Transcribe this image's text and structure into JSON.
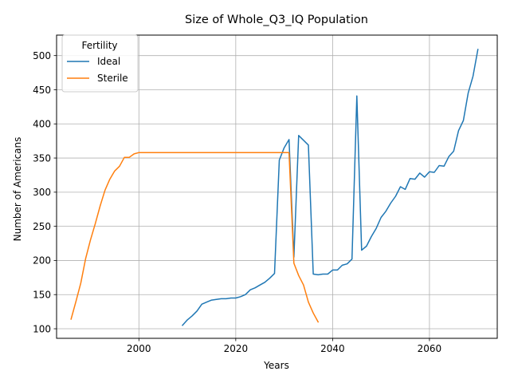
{
  "chart_data": {
    "type": "line",
    "title": "Size of Whole_Q3_IQ Population",
    "xlabel": "Years",
    "ylabel": "Number of Americans",
    "xlim": [
      1983,
      2074
    ],
    "ylim": [
      86,
      530
    ],
    "xticks": [
      2000,
      2020,
      2040,
      2060
    ],
    "yticks": [
      100,
      150,
      200,
      250,
      300,
      350,
      400,
      450,
      500
    ],
    "grid": true,
    "legend": {
      "title": "Fertility",
      "placement": "top-left"
    },
    "series": [
      {
        "name": "Ideal",
        "color": "#1f77b4",
        "x": [
          2009,
          2010,
          2011,
          2012,
          2013,
          2014,
          2015,
          2016,
          2017,
          2018,
          2019,
          2020,
          2021,
          2022,
          2023,
          2024,
          2025,
          2026,
          2027,
          2028,
          2029,
          2030,
          2031,
          2032,
          2033,
          2034,
          2035,
          2036,
          2037,
          2038,
          2039,
          2040,
          2041,
          2042,
          2043,
          2044,
          2045,
          2046,
          2047,
          2048,
          2049,
          2050,
          2051,
          2052,
          2053,
          2054,
          2055,
          2056,
          2057,
          2058,
          2059,
          2060,
          2061,
          2062,
          2063,
          2064,
          2065,
          2066,
          2067,
          2068,
          2069,
          2070
        ],
        "y": [
          105,
          113,
          119,
          126,
          136,
          139,
          142,
          143,
          144,
          144,
          145,
          145,
          147,
          150,
          157,
          160,
          164,
          168,
          174,
          181,
          347,
          365,
          377,
          205,
          383,
          376,
          369,
          180,
          179,
          180,
          180,
          186,
          186,
          193,
          195,
          202,
          441,
          215,
          221,
          235,
          247,
          263,
          272,
          284,
          294,
          308,
          304,
          320,
          319,
          328,
          322,
          330,
          329,
          339,
          338,
          352,
          360,
          390,
          405,
          445,
          470,
          509
        ]
      },
      {
        "name": "Sterile",
        "color": "#ff7f0e",
        "x": [
          1986,
          1987,
          1988,
          1989,
          1990,
          1991,
          1992,
          1993,
          1994,
          1995,
          1996,
          1997,
          1998,
          1999,
          2000,
          2005,
          2010,
          2015,
          2020,
          2025,
          2030,
          2031,
          2032,
          2033,
          2034,
          2035,
          2036,
          2037
        ],
        "y": [
          114,
          140,
          167,
          203,
          230,
          254,
          280,
          303,
          319,
          331,
          338,
          351,
          351,
          356,
          358,
          358,
          358,
          358,
          358,
          358,
          358,
          358,
          196,
          178,
          164,
          139,
          123,
          110
        ]
      }
    ]
  }
}
